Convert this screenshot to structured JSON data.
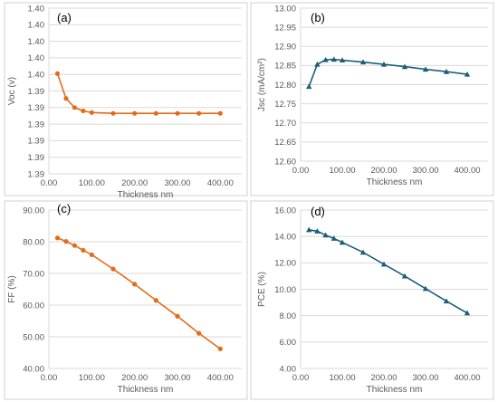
{
  "chart_data": [
    {
      "type": "line",
      "panel_label": "(a)",
      "xlabel": "Thickness nm",
      "ylabel": "Voc (v)",
      "xlim": [
        0,
        450
      ],
      "ylim": [
        1.386,
        1.406
      ],
      "x_ticks": [
        "0.00",
        "100.00",
        "200.00",
        "300.00",
        "400.00"
      ],
      "y_ticks": [
        "1.39",
        "1.39",
        "1.39",
        "1.39",
        "1.39",
        "1.39",
        "1.40",
        "1.40",
        "1.40",
        "1.40",
        "1.40"
      ],
      "marker": "circle",
      "color": "#E36C1A",
      "series": [
        {
          "x": [
            20,
            40,
            60,
            80,
            100,
            150,
            200,
            250,
            300,
            350,
            400
          ],
          "y": [
            1.3981,
            1.3951,
            1.394,
            1.3936,
            1.3934,
            1.3933,
            1.3933,
            1.3933,
            1.3933,
            1.3933,
            1.3933
          ]
        }
      ]
    },
    {
      "type": "line",
      "panel_label": "(b)",
      "xlabel": "Thickness nm",
      "ylabel": "Jsc (mA/cm²)",
      "xlim": [
        0,
        450
      ],
      "ylim": [
        12.6,
        13.0
      ],
      "x_ticks": [
        "0.00",
        "100.00",
        "200.00",
        "300.00",
        "400.00"
      ],
      "y_ticks": [
        "12.60",
        "12.65",
        "12.70",
        "12.75",
        "12.80",
        "12.85",
        "12.90",
        "12.95",
        "13.00"
      ],
      "marker": "triangle",
      "color": "#1B5E7B",
      "series": [
        {
          "x": [
            20,
            40,
            60,
            80,
            100,
            150,
            200,
            250,
            300,
            350,
            400
          ],
          "y": [
            12.795,
            12.853,
            12.865,
            12.866,
            12.864,
            12.859,
            12.853,
            12.847,
            12.84,
            12.834,
            12.827
          ]
        }
      ]
    },
    {
      "type": "line",
      "panel_label": "(c)",
      "xlabel": "Thickness nm",
      "ylabel": "FF (%)",
      "xlim": [
        0,
        450
      ],
      "ylim": [
        40,
        90
      ],
      "x_ticks": [
        "0.00",
        "100.00",
        "200.00",
        "300.00",
        "400.00"
      ],
      "y_ticks": [
        "40.00",
        "50.00",
        "60.00",
        "70.00",
        "80.00",
        "90.00"
      ],
      "marker": "circle",
      "color": "#E36C1A",
      "series": [
        {
          "x": [
            20,
            40,
            60,
            80,
            100,
            150,
            200,
            250,
            300,
            350,
            400
          ],
          "y": [
            81.2,
            80.1,
            78.8,
            77.3,
            75.9,
            71.4,
            66.6,
            61.5,
            56.5,
            51.1,
            46.2
          ]
        }
      ]
    },
    {
      "type": "line",
      "panel_label": "(d)",
      "xlabel": "Thickness nm",
      "ylabel": "PCE (%)",
      "xlim": [
        0,
        450
      ],
      "ylim": [
        4,
        16
      ],
      "x_ticks": [
        "0.00",
        "100.00",
        "200.00",
        "300.00",
        "400.00"
      ],
      "y_ticks": [
        "4.00",
        "6.00",
        "8.00",
        "10.00",
        "12.00",
        "14.00",
        "16.00"
      ],
      "marker": "triangle",
      "color": "#1B5E7B",
      "series": [
        {
          "x": [
            20,
            40,
            60,
            80,
            100,
            150,
            200,
            250,
            300,
            350,
            400
          ],
          "y": [
            14.5,
            14.4,
            14.1,
            13.85,
            13.55,
            12.8,
            11.9,
            11.0,
            10.05,
            9.1,
            8.2
          ]
        }
      ]
    }
  ]
}
